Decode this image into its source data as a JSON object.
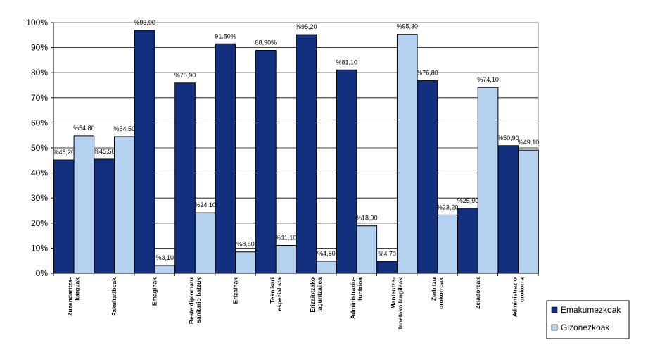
{
  "chart_data": {
    "type": "bar",
    "categories": [
      [
        "Zuzendaritza-",
        "karguak"
      ],
      [
        "Fakultatiboak"
      ],
      [
        "Emaginak"
      ],
      [
        "Beste diplomatu",
        "sanitario batzuk"
      ],
      [
        "Erizainak"
      ],
      [
        "Teknikari",
        "espezialista"
      ],
      [
        "Erizaintzako",
        "laguntzailea"
      ],
      [
        "Administrazio-",
        "funtzioa"
      ],
      [
        "Mantentze-",
        "lanetako langileak"
      ],
      [
        "Zerbitzu",
        "orokorroak"
      ],
      [
        "Zeladoreak"
      ],
      [
        "Administrazio",
        "orokorra"
      ]
    ],
    "series": [
      {
        "name": "Emakumezkoak",
        "color": "#12307e",
        "values": [
          45.2,
          45.5,
          96.9,
          75.9,
          91.5,
          88.9,
          95.2,
          81.1,
          4.7,
          76.8,
          25.9,
          50.9
        ],
        "labels": [
          "%45,20",
          "%45,50",
          "%96,90",
          "%75,90",
          "91,50%",
          "88,90%",
          "%95,20",
          "%81,10",
          "%4,70",
          "%76,80",
          "%25,90",
          "%50,90"
        ]
      },
      {
        "name": "Gizonezkoak",
        "color": "#b4d2ef",
        "values": [
          54.8,
          54.5,
          3.1,
          24.1,
          8.5,
          11.1,
          4.8,
          18.9,
          95.3,
          23.2,
          74.1,
          49.1
        ],
        "labels": [
          "%54,80",
          "%54,50",
          "%3,10",
          "%24,10",
          "%8,50",
          "%11,10",
          "%4,80",
          "%18,90",
          "%95,30",
          "%23,20",
          "%74,10",
          "%49,10"
        ]
      }
    ],
    "yticks": [
      "0%",
      "10%",
      "20%",
      "30%",
      "40%",
      "50%",
      "60%",
      "70%",
      "80%",
      "90%",
      "100%"
    ],
    "ylim": [
      0,
      100
    ],
    "legend_position": "bottom-right",
    "grid": true
  }
}
